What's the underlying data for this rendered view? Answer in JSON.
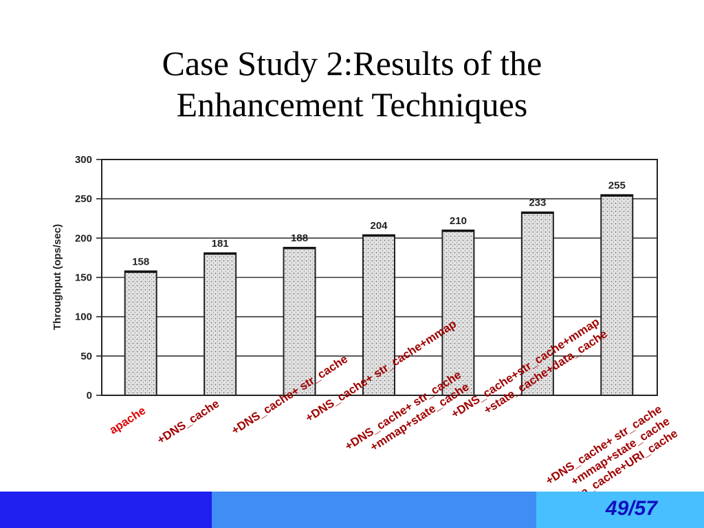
{
  "slide": {
    "title_line1": "Case Study 2:Results of the",
    "title_line2": "Enhancement Techniques",
    "page_number": "49/57"
  },
  "colors": {
    "label_first": "#e00000",
    "label_rest": "#a00000",
    "bar_fill": "#d8d8d8",
    "bottom_bar_left": "#1f1ff0",
    "bottom_bar_mid": "#3f8df5",
    "bottom_bar_right": "#48bfff",
    "page_number": "#1010c0"
  },
  "chart_data": {
    "type": "bar",
    "ylabel": "Throughput (ops/sec)",
    "xlabel": "",
    "ylim": [
      0,
      300
    ],
    "yticks": [
      0,
      50,
      100,
      150,
      200,
      250,
      300
    ],
    "grid": true,
    "categories": [
      [
        "apache"
      ],
      [
        "+DNS_cache"
      ],
      [
        "+DNS_cache+ str_cache"
      ],
      [
        "+DNS_cache+ str_cache+mmap"
      ],
      [
        "+DNS_cache+ str_cache",
        "+mmap+state_cache"
      ],
      [
        "+DNS_cache+str_cache+mmap",
        "+state_cache+data_cache"
      ],
      [
        "+DNS_cache+ str_cache",
        "+mmap+state_cache",
        "+data_cache+URI_cache"
      ]
    ],
    "values": [
      158,
      181,
      188,
      204,
      210,
      233,
      255
    ],
    "data_labels": [
      "158",
      "181",
      "188",
      "204",
      "210",
      "233",
      "255"
    ]
  }
}
